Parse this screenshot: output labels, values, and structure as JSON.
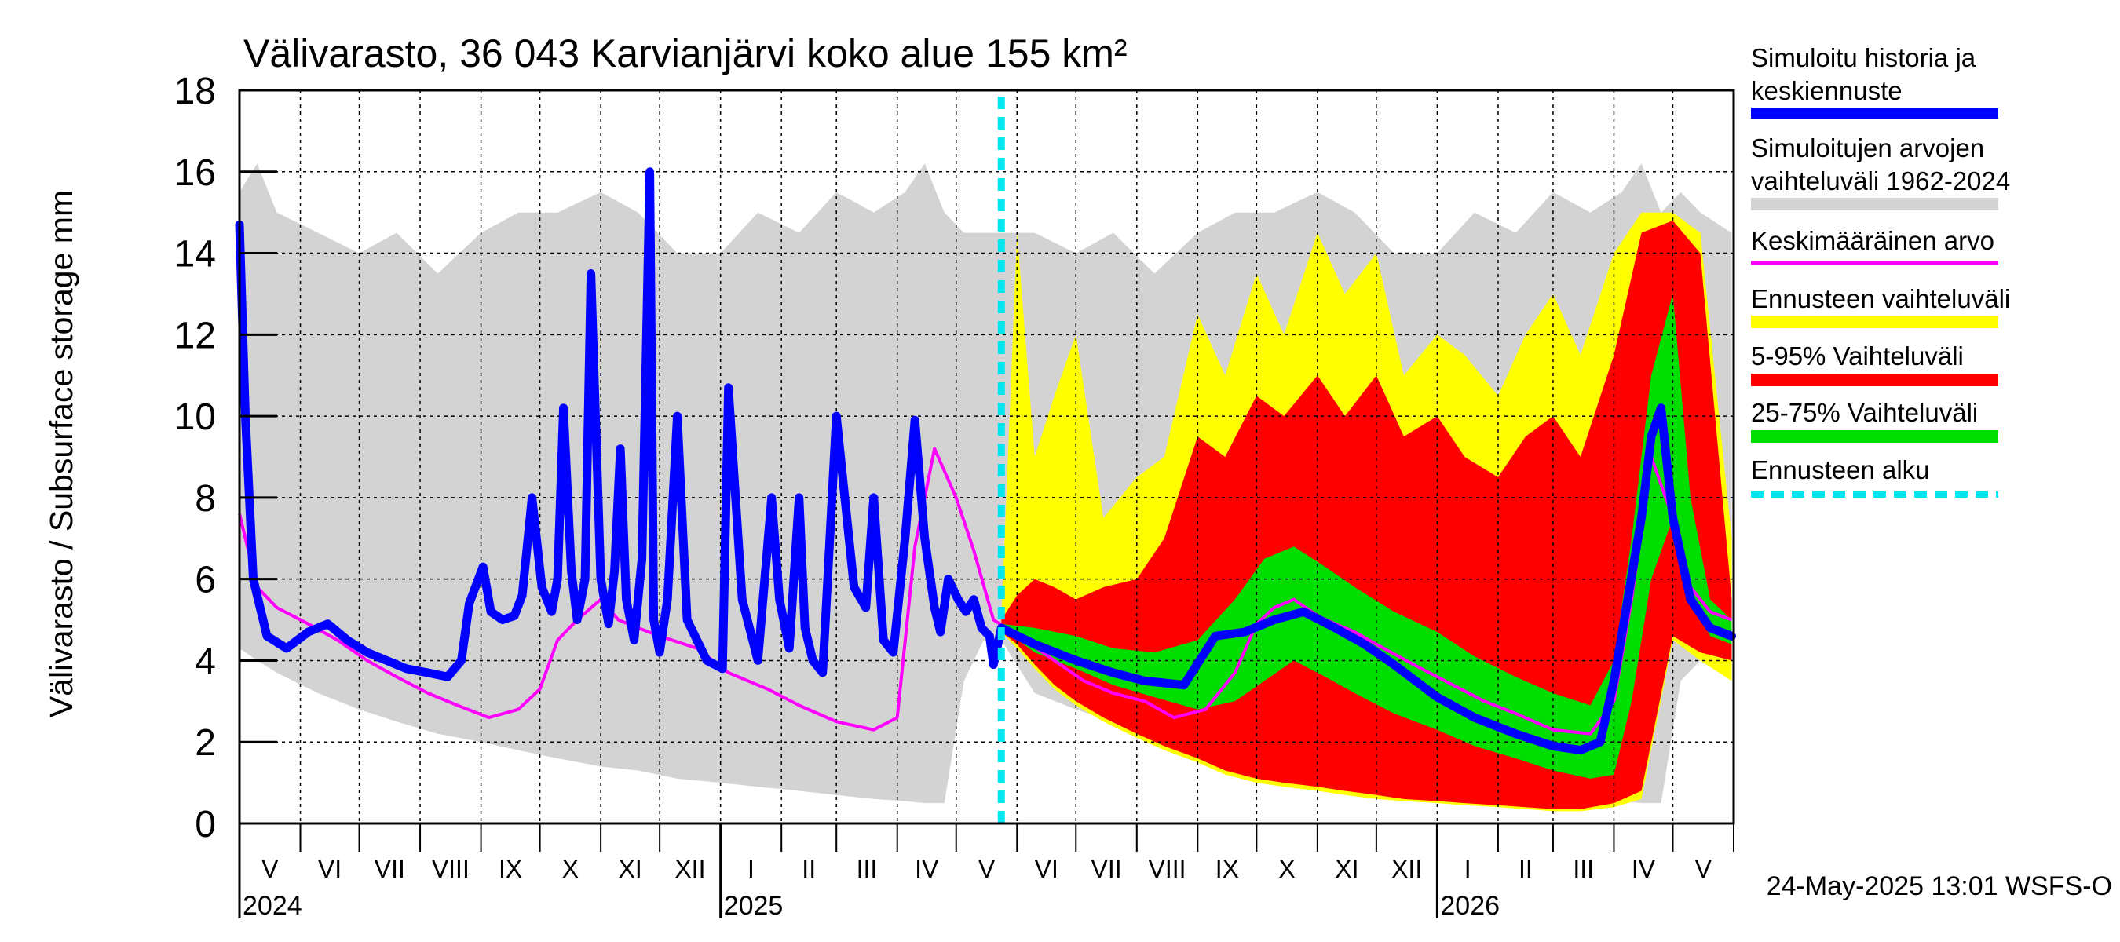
{
  "chart_data": {
    "type": "area",
    "title": "Välivarasto, 36 043 Karvianjärvi koko alue 155 km²",
    "ylabel": "Välivarasto / Subsurface storage  mm",
    "ylim": [
      0,
      18
    ],
    "yticks": [
      "0",
      "2",
      "4",
      "6",
      "8",
      "10",
      "12",
      "14",
      "16",
      "18"
    ],
    "x_range": [
      "2024-05-01",
      "2026-05-31"
    ],
    "months": [
      "V",
      "VI",
      "VII",
      "VIII",
      "IX",
      "X",
      "XI",
      "XII",
      "I",
      "II",
      "III",
      "IV",
      "V",
      "VI",
      "VII",
      "VIII",
      "IX",
      "X",
      "XI",
      "XII",
      "I",
      "II",
      "III",
      "IV",
      "V"
    ],
    "years": [
      "2024",
      "2025",
      "2026"
    ],
    "forecast_start": "2025-05-24",
    "footer": "24-May-2025 13:01 WSFS-O",
    "grid": true,
    "legend_position": "right",
    "legend": [
      {
        "label": "Simuloitu historia ja keskiennuste",
        "color": "#0000ff",
        "style": "line"
      },
      {
        "label": "Simuloitujen arvojen vaihteluväli 1962-2024",
        "color": "#d3d3d3",
        "style": "band"
      },
      {
        "label": "Keskimääräinen arvo",
        "color": "#ff00ff",
        "style": "line"
      },
      {
        "label": "Ennusteen vaihteluväli",
        "color": "#ffff00",
        "style": "band"
      },
      {
        "label": "5-95% Vaihteluväli",
        "color": "#ff0000",
        "style": "band"
      },
      {
        "label": "25-75% Vaihteluväli",
        "color": "#00dd00",
        "style": "band"
      },
      {
        "label": "Ennusteen alku",
        "color": "#00e5ee",
        "style": "dashed"
      }
    ],
    "series": [
      {
        "name": "Simuloitu historia ja keskiennuste",
        "x": [
          "2024-05-01",
          "2024-05-04",
          "2024-05-08",
          "2024-05-15",
          "2024-05-25",
          "2024-06-05",
          "2024-06-15",
          "2024-06-25",
          "2024-07-05",
          "2024-07-15",
          "2024-07-25",
          "2024-08-05",
          "2024-08-15",
          "2024-08-22",
          "2024-08-26",
          "2024-09-02",
          "2024-09-06",
          "2024-09-12",
          "2024-09-18",
          "2024-09-22",
          "2024-09-27",
          "2024-10-02",
          "2024-10-07",
          "2024-10-10",
          "2024-10-13",
          "2024-10-17",
          "2024-10-20",
          "2024-10-24",
          "2024-10-27",
          "2024-11-01",
          "2024-11-05",
          "2024-11-08",
          "2024-11-11",
          "2024-11-14",
          "2024-11-18",
          "2024-11-22",
          "2024-11-26",
          "2024-11-28",
          "2024-12-01",
          "2024-12-05",
          "2024-12-10",
          "2024-12-15",
          "2024-12-25",
          "2025-01-02",
          "2025-01-05",
          "2025-01-12",
          "2025-01-20",
          "2025-01-27",
          "2025-01-31",
          "2025-02-05",
          "2025-02-10",
          "2025-02-13",
          "2025-02-17",
          "2025-02-22",
          "2025-03-01",
          "2025-03-10",
          "2025-03-16",
          "2025-03-20",
          "2025-03-25",
          "2025-03-30",
          "2025-04-05",
          "2025-04-10",
          "2025-04-15",
          "2025-04-20",
          "2025-04-23",
          "2025-04-27",
          "2025-05-02",
          "2025-05-06",
          "2025-05-10",
          "2025-05-14",
          "2025-05-18",
          "2025-05-20",
          "2025-05-24",
          "2025-06-10",
          "2025-07-01",
          "2025-07-20",
          "2025-08-05",
          "2025-08-25",
          "2025-09-10",
          "2025-09-25",
          "2025-10-10",
          "2025-10-25",
          "2025-11-10",
          "2025-11-25",
          "2025-12-10",
          "2026-01-01",
          "2026-01-20",
          "2026-02-10",
          "2026-03-01",
          "2026-03-15",
          "2026-03-25",
          "2026-04-01",
          "2026-04-08",
          "2026-04-15",
          "2026-04-20",
          "2026-04-25",
          "2026-05-01",
          "2026-05-10",
          "2026-05-20",
          "2026-05-31"
        ],
        "y": [
          14.7,
          10.0,
          6.0,
          4.6,
          4.3,
          4.7,
          4.9,
          4.5,
          4.2,
          4.0,
          3.8,
          3.7,
          3.6,
          4.0,
          5.4,
          6.3,
          5.2,
          5.0,
          5.1,
          5.6,
          8.0,
          5.8,
          5.2,
          6.0,
          10.2,
          6.2,
          5.0,
          6.0,
          13.5,
          6.0,
          4.9,
          6.2,
          9.2,
          5.5,
          4.5,
          6.5,
          16.0,
          5.0,
          4.2,
          5.5,
          10.0,
          5.0,
          4.0,
          3.8,
          10.7,
          5.5,
          4.0,
          8.0,
          5.5,
          4.3,
          8.0,
          4.8,
          4.0,
          3.7,
          10.0,
          5.8,
          5.3,
          8.0,
          4.5,
          4.2,
          7.0,
          9.9,
          7.0,
          5.3,
          4.7,
          6.0,
          5.5,
          5.2,
          5.5,
          4.8,
          4.6,
          3.9,
          4.8,
          4.4,
          4.0,
          3.7,
          3.5,
          3.4,
          4.6,
          4.7,
          5.0,
          5.2,
          4.8,
          4.4,
          3.9,
          3.1,
          2.6,
          2.2,
          1.9,
          1.8,
          2.0,
          3.5,
          5.5,
          7.5,
          9.5,
          10.2,
          7.5,
          5.5,
          4.8,
          4.6
        ]
      },
      {
        "name": "Keskimääräinen arvo",
        "x": [
          "2024-05-01",
          "2024-05-10",
          "2024-05-20",
          "2024-06-05",
          "2024-06-20",
          "2024-07-05",
          "2024-07-20",
          "2024-08-05",
          "2024-08-20",
          "2024-09-05",
          "2024-09-20",
          "2024-10-01",
          "2024-10-10",
          "2024-10-20",
          "2024-11-01",
          "2024-11-10",
          "2024-11-20",
          "2024-12-01",
          "2024-12-20",
          "2025-01-05",
          "2025-01-25",
          "2025-02-10",
          "2025-03-01",
          "2025-03-20",
          "2025-04-01",
          "2025-04-10",
          "2025-04-20",
          "2025-05-01",
          "2025-05-10",
          "2025-05-20",
          "2025-06-05",
          "2025-06-20",
          "2025-07-05",
          "2025-07-20",
          "2025-08-05",
          "2025-08-20",
          "2025-09-05",
          "2025-09-20",
          "2025-10-01",
          "2025-10-10",
          "2025-10-20",
          "2025-11-01",
          "2025-11-10",
          "2025-11-20",
          "2025-12-01",
          "2025-12-20",
          "2026-01-05",
          "2026-01-25",
          "2026-02-10",
          "2026-03-01",
          "2026-03-20",
          "2026-04-01",
          "2026-04-10",
          "2026-04-20",
          "2026-05-01",
          "2026-05-10",
          "2026-05-20",
          "2026-05-31"
        ],
        "y": [
          7.6,
          5.8,
          5.3,
          4.9,
          4.5,
          4.0,
          3.6,
          3.2,
          2.9,
          2.6,
          2.8,
          3.3,
          4.5,
          5.0,
          5.5,
          5.0,
          4.8,
          4.6,
          4.3,
          3.7,
          3.3,
          2.9,
          2.5,
          2.3,
          2.6,
          6.8,
          9.2,
          8.0,
          6.7,
          5.0,
          4.5,
          4.0,
          3.5,
          3.2,
          3.0,
          2.6,
          2.8,
          3.7,
          4.9,
          5.3,
          5.5,
          5.1,
          4.9,
          4.7,
          4.4,
          3.9,
          3.5,
          3.0,
          2.7,
          2.3,
          2.2,
          3.0,
          5.5,
          9.0,
          7.5,
          5.8,
          5.2,
          5.0
        ]
      }
    ],
    "bands": [
      {
        "name": "Simuloitujen arvojen vaihteluväli 1962-2024",
        "x": [
          "2024-05-01",
          "2024-05-10",
          "2024-05-20",
          "2024-06-10",
          "2024-07-01",
          "2024-07-20",
          "2024-08-10",
          "2024-09-01",
          "2024-09-20",
          "2024-10-10",
          "2024-11-01",
          "2024-11-20",
          "2024-12-10",
          "2025-01-01",
          "2025-01-20",
          "2025-02-10",
          "2025-03-01",
          "2025-03-20",
          "2025-04-05",
          "2025-04-15",
          "2025-04-25",
          "2025-05-05",
          "2025-05-15",
          "2025-05-24",
          "2025-06-10",
          "2025-07-01",
          "2025-07-20",
          "2025-08-10",
          "2025-09-01",
          "2025-09-20",
          "2025-10-10",
          "2025-11-01",
          "2025-11-20",
          "2025-12-10",
          "2026-01-01",
          "2026-01-20",
          "2026-02-10",
          "2026-03-01",
          "2026-03-20",
          "2026-04-05",
          "2026-04-15",
          "2026-04-25",
          "2026-05-05",
          "2026-05-15",
          "2026-05-31"
        ],
        "upper": [
          15.5,
          16.2,
          15.0,
          14.5,
          14.0,
          14.5,
          13.5,
          14.5,
          15.0,
          15.0,
          15.5,
          15.0,
          14.0,
          14.0,
          15.0,
          14.5,
          15.5,
          15.0,
          15.5,
          16.2,
          15.0,
          14.5,
          14.5,
          14.5,
          14.5,
          14.0,
          14.5,
          13.5,
          14.5,
          15.0,
          15.0,
          15.5,
          15.0,
          14.0,
          14.0,
          15.0,
          14.5,
          15.5,
          15.0,
          15.5,
          16.2,
          15.0,
          15.5,
          15.0,
          14.5
        ],
        "lower": [
          4.3,
          4.0,
          3.7,
          3.2,
          2.8,
          2.5,
          2.2,
          2.0,
          1.8,
          1.6,
          1.4,
          1.3,
          1.1,
          1.0,
          0.9,
          0.8,
          0.7,
          0.6,
          0.55,
          0.5,
          0.5,
          3.5,
          4.5,
          4.5,
          3.2,
          2.8,
          2.5,
          2.2,
          2.0,
          1.8,
          1.6,
          1.4,
          1.3,
          1.1,
          1.0,
          0.9,
          0.8,
          0.7,
          0.6,
          0.55,
          0.5,
          0.5,
          3.5,
          4.0,
          3.7
        ]
      },
      {
        "name": "Ennusteen vaihteluväli",
        "x": [
          "2025-05-24",
          "2025-06-01",
          "2025-06-10",
          "2025-06-20",
          "2025-07-01",
          "2025-07-15",
          "2025-08-01",
          "2025-08-15",
          "2025-09-01",
          "2025-09-15",
          "2025-10-01",
          "2025-10-15",
          "2025-11-01",
          "2025-11-15",
          "2025-12-01",
          "2025-12-15",
          "2026-01-01",
          "2026-01-15",
          "2026-02-01",
          "2026-02-15",
          "2026-03-01",
          "2026-03-15",
          "2026-04-01",
          "2026-04-15",
          "2026-05-01",
          "2026-05-15",
          "2026-05-31"
        ],
        "upper": [
          5.0,
          14.5,
          9.0,
          10.5,
          12.0,
          7.5,
          8.5,
          9.0,
          12.5,
          11.0,
          13.5,
          12.0,
          14.5,
          13.0,
          14.0,
          11.0,
          12.0,
          11.5,
          10.5,
          12.0,
          13.0,
          11.5,
          14.0,
          15.0,
          15.0,
          14.5,
          7.0
        ],
        "lower": [
          4.7,
          4.3,
          3.8,
          3.3,
          2.9,
          2.5,
          2.1,
          1.8,
          1.5,
          1.2,
          1.0,
          0.9,
          0.8,
          0.7,
          0.6,
          0.55,
          0.5,
          0.45,
          0.4,
          0.35,
          0.3,
          0.3,
          0.4,
          0.6,
          4.5,
          4.0,
          3.5
        ]
      },
      {
        "name": "5-95% Vaihteluväli",
        "x": [
          "2025-05-24",
          "2025-06-01",
          "2025-06-10",
          "2025-06-20",
          "2025-07-01",
          "2025-07-15",
          "2025-08-01",
          "2025-08-15",
          "2025-09-01",
          "2025-09-15",
          "2025-10-01",
          "2025-10-15",
          "2025-11-01",
          "2025-11-15",
          "2025-12-01",
          "2025-12-15",
          "2026-01-01",
          "2026-01-15",
          "2026-02-01",
          "2026-02-15",
          "2026-03-01",
          "2026-03-15",
          "2026-04-01",
          "2026-04-15",
          "2026-05-01",
          "2026-05-15",
          "2026-05-31"
        ],
        "upper": [
          5.0,
          5.6,
          6.0,
          5.8,
          5.5,
          5.8,
          6.0,
          7.0,
          9.5,
          9.0,
          10.5,
          10.0,
          11.0,
          10.0,
          11.0,
          9.5,
          10.0,
          9.0,
          8.5,
          9.5,
          10.0,
          9.0,
          11.5,
          14.5,
          14.8,
          14.0,
          5.5
        ],
        "lower": [
          4.7,
          4.4,
          3.9,
          3.4,
          3.0,
          2.6,
          2.2,
          1.9,
          1.6,
          1.3,
          1.1,
          1.0,
          0.9,
          0.8,
          0.7,
          0.6,
          0.55,
          0.5,
          0.45,
          0.4,
          0.35,
          0.35,
          0.5,
          0.8,
          4.6,
          4.2,
          4.0
        ]
      },
      {
        "name": "25-75% Vaihteluväli",
        "x": [
          "2025-05-24",
          "2025-06-10",
          "2025-07-01",
          "2025-07-20",
          "2025-08-10",
          "2025-09-01",
          "2025-09-20",
          "2025-10-05",
          "2025-10-20",
          "2025-11-05",
          "2025-11-20",
          "2025-12-10",
          "2026-01-01",
          "2026-01-20",
          "2026-02-10",
          "2026-03-01",
          "2026-03-20",
          "2026-04-01",
          "2026-04-10",
          "2026-04-20",
          "2026-05-01",
          "2026-05-10",
          "2026-05-20",
          "2026-05-31"
        ],
        "upper": [
          4.9,
          4.8,
          4.6,
          4.3,
          4.2,
          4.5,
          5.5,
          6.5,
          6.8,
          6.3,
          5.8,
          5.2,
          4.7,
          4.1,
          3.6,
          3.2,
          2.9,
          4.0,
          7.0,
          11.0,
          13.0,
          8.0,
          5.5,
          5.0
        ],
        "lower": [
          4.8,
          4.2,
          3.8,
          3.4,
          3.1,
          2.8,
          3.0,
          3.5,
          4.0,
          3.6,
          3.2,
          2.7,
          2.3,
          1.9,
          1.6,
          1.3,
          1.1,
          1.2,
          3.0,
          6.0,
          7.5,
          5.5,
          4.6,
          4.4
        ]
      }
    ]
  }
}
